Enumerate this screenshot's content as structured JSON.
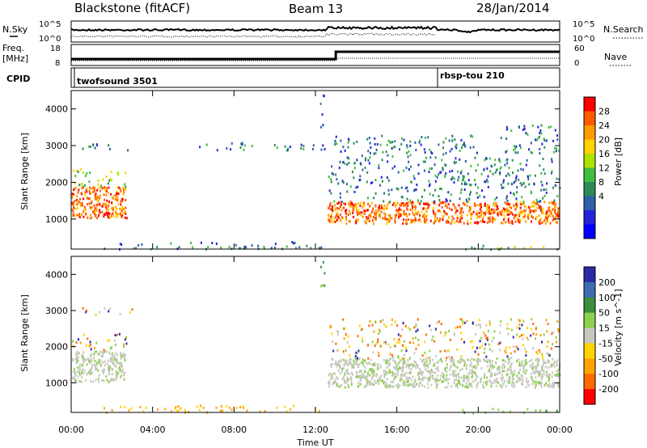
{
  "header": {
    "station": "Blackstone (fitACF)",
    "beam": "Beam 13",
    "date": "28/Jan/2014"
  },
  "noise_panel": {
    "left_label": "N.Sky",
    "left_ticks": [
      "10^5",
      "10^0"
    ],
    "right_label": "N.Search",
    "right_ticks": [
      "10^5",
      "10^0"
    ]
  },
  "freq_panel": {
    "left_label_line1": "Freq.",
    "left_label_line2": "[MHz]",
    "left_ticks": [
      "18",
      "8"
    ],
    "right_label": "Nave",
    "right_ticks": [
      "60",
      "0"
    ]
  },
  "cpid_panel": {
    "label": "CPID",
    "modes": [
      {
        "name": "twofsound 3501",
        "start_hour": 0
      },
      {
        "name": "rbsp-tou 210",
        "start_hour": 18
      }
    ]
  },
  "chart_data": [
    {
      "type": "heatmap",
      "name": "power",
      "ylabel": "Slant Range [km]",
      "ylim": [
        180,
        4500
      ],
      "yticks": [
        1000,
        2000,
        3000,
        4000
      ],
      "xlim": [
        0,
        24
      ],
      "colorbar": {
        "label": "Power [dB]",
        "ticks": [
          "28",
          "24",
          "20",
          "16",
          "12",
          "8",
          "4"
        ],
        "colors": [
          "#ff0000",
          "#ff5a00",
          "#ff9a00",
          "#ffd200",
          "#aee000",
          "#3fbf3f",
          "#2e8b57",
          "#2f5fa8",
          "#2424d8",
          "#0000ff"
        ]
      },
      "regions": [
        {
          "t0": 0.0,
          "t1": 2.7,
          "r0": 1050,
          "r1": 1900,
          "level": "high"
        },
        {
          "t0": 0.0,
          "t1": 2.7,
          "r0": 1900,
          "r1": 2400,
          "level": "mid"
        },
        {
          "t0": 0.5,
          "t1": 3.0,
          "r0": 2900,
          "r1": 3100,
          "level": "low"
        },
        {
          "t0": 6.0,
          "t1": 12.5,
          "r0": 2900,
          "r1": 3100,
          "level": "low"
        },
        {
          "t0": 1.5,
          "t1": 12.3,
          "r0": 200,
          "r1": 400,
          "level": "low"
        },
        {
          "t0": 12.2,
          "t1": 12.5,
          "r0": 3500,
          "r1": 4500,
          "level": "low"
        },
        {
          "t0": 12.6,
          "t1": 24.0,
          "r0": 900,
          "r1": 1500,
          "level": "high"
        },
        {
          "t0": 12.6,
          "t1": 24.0,
          "r0": 1500,
          "r1": 2700,
          "level": "low"
        },
        {
          "t0": 12.6,
          "t1": 20.0,
          "r0": 2700,
          "r1": 3300,
          "level": "low"
        },
        {
          "t0": 21.0,
          "t1": 24.0,
          "r0": 2800,
          "r1": 3600,
          "level": "low"
        },
        {
          "t0": 19.0,
          "t1": 24.0,
          "r0": 180,
          "r1": 320,
          "level": "mid"
        }
      ]
    },
    {
      "type": "heatmap",
      "name": "velocity",
      "ylabel": "Slant Range [km]",
      "ylim": [
        180,
        4500
      ],
      "yticks": [
        1000,
        2000,
        3000,
        4000
      ],
      "xlim": [
        0,
        24
      ],
      "xticks": [
        "00:00",
        "04:00",
        "08:00",
        "12:00",
        "16:00",
        "20:00",
        "00:00"
      ],
      "xlabel": "Time UT",
      "colorbar": {
        "label": "Velocity [m s^-1]",
        "ticks": [
          "200",
          "100",
          "50",
          "15",
          "-15",
          "-50",
          "-100",
          "-200"
        ],
        "colors": [
          "#2a2aa8",
          "#3e6db5",
          "#3b8f3b",
          "#8cd24a",
          "#c8c8c0",
          "#ffd400",
          "#ffa200",
          "#ff6a00",
          "#ff0000"
        ]
      },
      "regions": [
        {
          "t0": 0.0,
          "t1": 2.7,
          "r0": 1050,
          "r1": 1900,
          "level": "ground"
        },
        {
          "t0": 0.0,
          "t1": 2.7,
          "r0": 1900,
          "r1": 2400,
          "level": "mixed"
        },
        {
          "t0": 0.5,
          "t1": 3.0,
          "r0": 2900,
          "r1": 3100,
          "level": "mixed"
        },
        {
          "t0": 1.5,
          "t1": 12.3,
          "r0": 200,
          "r1": 400,
          "level": "neg"
        },
        {
          "t0": 12.2,
          "t1": 12.5,
          "r0": 3500,
          "r1": 4500,
          "level": "pos"
        },
        {
          "t0": 12.6,
          "t1": 24.0,
          "r0": 900,
          "r1": 1700,
          "level": "ground"
        },
        {
          "t0": 12.6,
          "t1": 24.0,
          "r0": 1700,
          "r1": 2800,
          "level": "mixed"
        },
        {
          "t0": 19.0,
          "t1": 24.0,
          "r0": 180,
          "r1": 320,
          "level": "pos"
        }
      ]
    }
  ]
}
